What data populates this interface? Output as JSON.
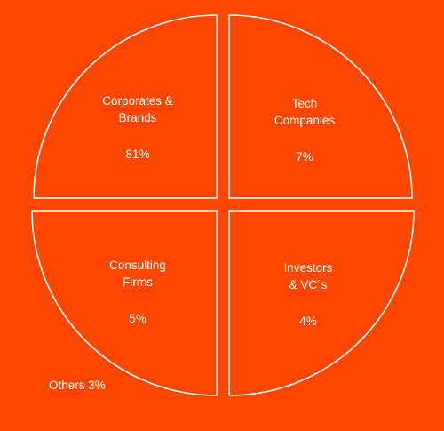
{
  "segments": [
    {
      "line1": "Corporates &",
      "line2": "Brands",
      "percent": "81%"
    },
    {
      "line1": "Tech",
      "line2": "Companies",
      "percent": "7%"
    },
    {
      "line1": "Consulting",
      "line2": "Firms",
      "percent": "5%"
    },
    {
      "line1": "Investors",
      "line2": "& VC´s",
      "percent": "4%"
    }
  ],
  "others": {
    "label": "Others",
    "percent": "3%"
  },
  "colors": {
    "background": "#fd4600",
    "stroke": "#ffffff",
    "text": "#ffffff"
  }
}
